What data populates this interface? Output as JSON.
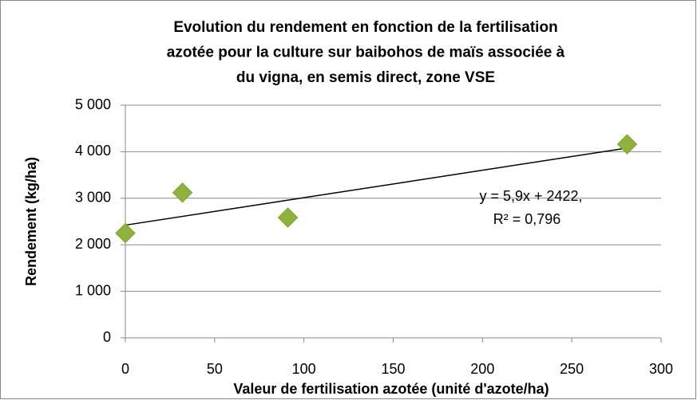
{
  "chart_data": {
    "type": "scatter",
    "title": [
      "Evolution du rendement en fonction de la fertilisation",
      "azotée pour la culture sur baibohos de maïs associée à",
      "du vigna, en semis direct, zone VSE"
    ],
    "x_label": "Valeur de fertilisation azotée (unité d'azote/ha)",
    "y_label": "Rendement (kg/ha)",
    "x": [
      0,
      32,
      91,
      281
    ],
    "values": [
      2250,
      3120,
      2585,
      4160
    ],
    "color": "#8db33a",
    "xlim": [
      0,
      300
    ],
    "xticks": [
      0,
      50,
      100,
      150,
      200,
      250,
      300
    ],
    "ylim": [
      0,
      5000
    ],
    "yticks": [
      0,
      {
        "value": 1000,
        "label": "1 000"
      },
      {
        "value": 2000,
        "label": "2 000"
      },
      {
        "value": 3000,
        "label": "3 000"
      },
      {
        "value": 4000,
        "label": "4 000"
      },
      {
        "value": 5000,
        "label": "5 000"
      }
    ],
    "grid": true,
    "trendline": {
      "slope": 5.9,
      "intercept": 2422,
      "r2": 0.796,
      "label": [
        "y = 5,9x + 2422,",
        "R² = 0,796"
      ]
    }
  }
}
